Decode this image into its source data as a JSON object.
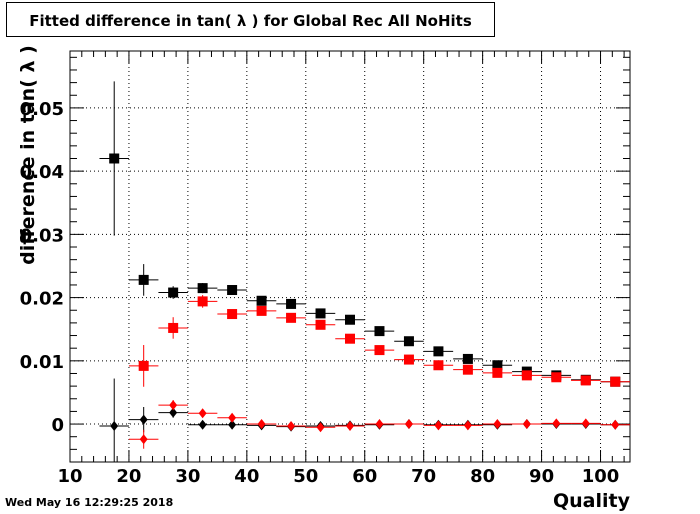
{
  "timestamp": "Wed May 16 12:29:25 2018",
  "chart_data": {
    "type": "scatter",
    "title": "Fitted difference in tan( λ ) for Global Rec All NoHits",
    "xlabel": "Quality",
    "ylabel": "difference in tan( λ )",
    "xlim": [
      10,
      105
    ],
    "ylim": [
      -0.006,
      0.059
    ],
    "grid": true,
    "x_ticks": [
      10,
      20,
      30,
      40,
      50,
      60,
      70,
      80,
      90,
      100
    ],
    "x_tick_labels": [
      "10",
      "20",
      "30",
      "40",
      "50",
      "60",
      "70",
      "80",
      "90",
      "100"
    ],
    "y_ticks": [
      0,
      0.01,
      0.02,
      0.03,
      0.04,
      0.05
    ],
    "y_tick_labels": [
      "0",
      "0.01",
      "0.02",
      "0.03",
      "0.04",
      "0.05"
    ],
    "x_bin_halfwidth": 2.5,
    "series": [
      {
        "marker": "square",
        "color": "#000000",
        "x": [
          17.5,
          22.5,
          27.5,
          32.5,
          37.5,
          42.5,
          47.5,
          52.5,
          57.5,
          62.5,
          67.5,
          72.5,
          77.5,
          82.5,
          87.5,
          92.5,
          97.5,
          102.5
        ],
        "values": [
          0.042,
          0.0228,
          0.0208,
          0.0215,
          0.0212,
          0.0195,
          0.019,
          0.0175,
          0.0165,
          0.0147,
          0.0131,
          0.0115,
          0.0103,
          0.0093,
          0.0083,
          0.0077,
          0.007,
          0.0067
        ],
        "errors": [
          0.0122,
          0.0025,
          0.001,
          0.0008,
          0.0006,
          0.0005,
          0.0004,
          0.0004,
          0.0004,
          0.0004,
          0.0003,
          0.0003,
          0.0003,
          0.0003,
          0.0003,
          0.0003,
          0.0003,
          0.0003
        ]
      },
      {
        "marker": "square",
        "color": "#ff0000",
        "x": [
          22.5,
          27.5,
          32.5,
          37.5,
          42.5,
          47.5,
          52.5,
          57.5,
          62.5,
          67.5,
          72.5,
          77.5,
          82.5,
          87.5,
          92.5,
          97.5,
          102.5
        ],
        "values": [
          0.0092,
          0.0152,
          0.0194,
          0.0174,
          0.0179,
          0.0168,
          0.0157,
          0.0135,
          0.0117,
          0.0102,
          0.0093,
          0.0086,
          0.0081,
          0.0077,
          0.0074,
          0.0069,
          0.0067
        ],
        "errors": [
          0.0033,
          0.0017,
          0.001,
          0.0006,
          0.0005,
          0.0004,
          0.0004,
          0.0003,
          0.0003,
          0.0003,
          0.0003,
          0.0003,
          0.0003,
          0.0003,
          0.0003,
          0.0003,
          0.0003
        ]
      },
      {
        "marker": "diamond",
        "color": "#000000",
        "x": [
          17.5,
          22.5,
          27.5,
          32.5,
          37.5,
          42.5,
          47.5,
          52.5,
          57.5,
          62.5,
          67.5,
          72.5,
          77.5,
          82.5,
          87.5,
          92.5,
          97.5,
          102.5
        ],
        "values": [
          -0.0003,
          0.0007,
          0.0018,
          -0.0001,
          -0.0001,
          -0.0002,
          -0.0004,
          -0.0003,
          -0.0002,
          -0.0001,
          0.0,
          -0.0001,
          -0.0001,
          -0.0001,
          0.0,
          0.0,
          0.0,
          -0.0001
        ],
        "errors": [
          0.0075,
          0.002,
          0.0008,
          0.0004,
          0.0003,
          0.0002,
          0.0002,
          0.0002,
          0.0002,
          0.0002,
          0.0002,
          0.0002,
          0.0002,
          0.0002,
          0.0002,
          0.0002,
          0.0002,
          0.0002
        ]
      },
      {
        "marker": "diamond",
        "color": "#ff0000",
        "x": [
          22.5,
          27.5,
          32.5,
          37.5,
          42.5,
          47.5,
          52.5,
          57.5,
          62.5,
          67.5,
          72.5,
          77.5,
          82.5,
          87.5,
          92.5,
          97.5,
          102.5
        ],
        "values": [
          -0.0024,
          0.003,
          0.0017,
          0.001,
          0.0,
          -0.0003,
          -0.0005,
          -0.0003,
          0.0,
          0.0,
          -0.0002,
          -0.0002,
          0.0,
          0.0,
          0.0001,
          0.0001,
          -0.0001
        ],
        "errors": [
          0.0015,
          0.0008,
          0.0004,
          0.0003,
          0.0002,
          0.0002,
          0.0002,
          0.0002,
          0.0002,
          0.0002,
          0.0002,
          0.0002,
          0.0002,
          0.0002,
          0.0002,
          0.0002,
          0.0002
        ]
      }
    ]
  }
}
